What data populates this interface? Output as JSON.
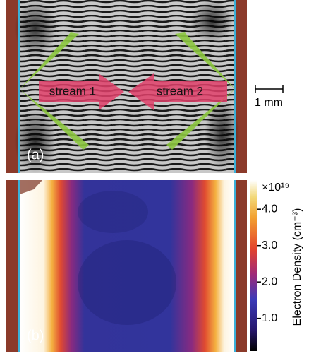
{
  "panels": [
    {
      "label": "(a)"
    },
    {
      "label": "(b)"
    }
  ],
  "streams": [
    "stream 1",
    "stream 2"
  ],
  "scale_bar": {
    "label": "1 mm"
  },
  "colorbar": {
    "label": "Electron Density (cm⁻³)",
    "multiplier": "×10¹⁹",
    "lim": [
      0.1,
      4.8
    ],
    "ticks": [
      {
        "value": 1,
        "label": "1.0"
      },
      {
        "value": 2,
        "label": "2.0"
      },
      {
        "value": 3,
        "label": "3.0"
      },
      {
        "value": 4,
        "label": "4.0"
      }
    ]
  }
}
